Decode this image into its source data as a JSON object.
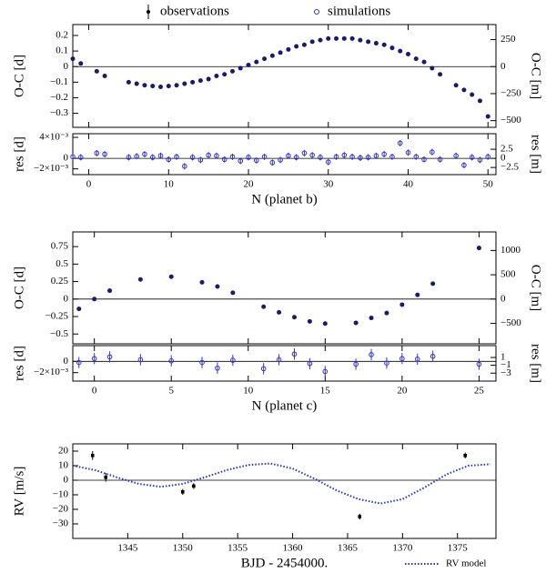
{
  "legend": [
    "observations",
    "simulations"
  ],
  "chart_data": [
    {
      "type": "scatter",
      "marker": "filled",
      "color": "#1a1a6e",
      "zero_line": true,
      "ylabel": "O-C [d]",
      "y2label": "O-C [m]",
      "x": [
        -2,
        -1,
        1,
        2,
        5,
        6,
        7,
        8,
        9,
        10,
        11,
        12,
        13,
        14,
        15,
        16,
        17,
        18,
        19,
        20,
        21,
        22,
        23,
        24,
        25,
        26,
        27,
        28,
        29,
        30,
        31,
        32,
        33,
        34,
        35,
        36,
        37,
        38,
        39,
        40,
        41,
        42,
        43,
        44,
        46,
        47,
        48,
        49,
        50
      ],
      "values": [
        0.05,
        0.02,
        -0.03,
        -0.06,
        -0.1,
        -0.11,
        -0.12,
        -0.125,
        -0.13,
        -0.125,
        -0.12,
        -0.11,
        -0.1,
        -0.09,
        -0.08,
        -0.06,
        -0.05,
        -0.03,
        -0.01,
        0.01,
        0.03,
        0.05,
        0.07,
        0.09,
        0.11,
        0.13,
        0.14,
        0.16,
        0.17,
        0.18,
        0.18,
        0.18,
        0.18,
        0.17,
        0.16,
        0.15,
        0.14,
        0.12,
        0.1,
        0.08,
        0.05,
        0.03,
        -0.01,
        -0.05,
        -0.12,
        -0.15,
        -0.18,
        -0.22,
        -0.32
      ],
      "xlim": [
        -2,
        51
      ],
      "ylim": [
        -0.39,
        0.27
      ],
      "yticks": [
        0.2,
        0.1,
        0,
        {
          "value": -0.1,
          "label": "−0.1"
        },
        {
          "value": -0.2,
          "label": "−0.2"
        },
        {
          "value": -0.3,
          "label": "−0.3"
        }
      ],
      "y2lim": [
        -562,
        389
      ],
      "y2ticks": [
        250,
        0,
        {
          "value": -250,
          "label": "−250"
        },
        {
          "value": -500,
          "label": "−500"
        }
      ]
    },
    {
      "type": "scatter",
      "marker": "open",
      "color": "#3333cc",
      "zero_line": true,
      "ylabel": "res [d]",
      "y2label": "res [m]",
      "xlabel": "N (planet b)",
      "x": [
        -2,
        -1,
        1,
        2,
        5,
        6,
        7,
        8,
        9,
        10,
        11,
        12,
        13,
        14,
        15,
        16,
        17,
        18,
        19,
        20,
        21,
        22,
        23,
        24,
        25,
        26,
        27,
        28,
        29,
        30,
        31,
        32,
        33,
        34,
        35,
        36,
        37,
        38,
        39,
        40,
        41,
        42,
        43,
        44,
        46,
        47,
        48,
        49,
        50
      ],
      "values": [
        0.0003,
        0.0002,
        0.001,
        0.0008,
        0.0002,
        0.0004,
        0.0008,
        0.0002,
        0.0005,
        -0.0002,
        0.0003,
        -0.0015,
        0.0002,
        -0.0003,
        0.0006,
        0.0005,
        -0.0002,
        0.0003,
        -0.0005,
        0.0002,
        -0.0004,
        0.0003,
        -0.0008,
        -0.0003,
        0.0005,
        0.0002,
        0.001,
        0.0006,
        0.0002,
        -0.0007,
        0.0003,
        0.0006,
        0.0003,
        0.0001,
        0.0002,
        0.0005,
        0.0008,
        0.0003,
        0.0029,
        0.0011,
        0.0003,
        -0.0002,
        0.0012,
        -0.0002,
        0.0005,
        -0.0013,
        0.0002,
        -0.0003,
        0.0003
      ],
      "errors": [
        0.0006,
        0.0006,
        0.0006,
        0.0006,
        0.0006,
        0.0006,
        0.0006,
        0.0006,
        0.0006,
        0.0006,
        0.0006,
        0.0006,
        0.0006,
        0.0006,
        0.0006,
        0.0006,
        0.0006,
        0.0006,
        0.0006,
        0.0006,
        0.0006,
        0.0006,
        0.0006,
        0.0006,
        0.0006,
        0.0006,
        0.0006,
        0.0006,
        0.0006,
        0.0006,
        0.0006,
        0.0006,
        0.0006,
        0.0006,
        0.0006,
        0.0006,
        0.0006,
        0.0006,
        0.0006,
        0.0006,
        0.0006,
        0.0006,
        0.0006,
        0.0006,
        0.0006,
        0.0006,
        0.0006,
        0.0006,
        0.0006
      ],
      "xlim": [
        -2,
        51
      ],
      "xticks": [
        0,
        10,
        20,
        30,
        40,
        50
      ],
      "ylim": [
        -0.0031,
        0.0047
      ],
      "yticks": [
        {
          "value": 0.004,
          "label": "4×10⁻³"
        },
        0,
        {
          "value": -0.002,
          "label": "−2×10⁻³"
        }
      ],
      "y2lim": [
        -4.46,
        6.77
      ],
      "y2ticks": [
        2.5,
        0,
        {
          "value": -2.5,
          "label": "−2.5"
        }
      ]
    },
    {
      "type": "scatter",
      "marker": "filled",
      "color": "#1a1a6e",
      "zero_line": true,
      "ylabel": "O-C [d]",
      "y2label": "O-C [m]",
      "x": [
        -1,
        0,
        1,
        3,
        5,
        7,
        8,
        9,
        11,
        12,
        13,
        14,
        15,
        17,
        18,
        19,
        20,
        21,
        22,
        25
      ],
      "values": [
        -0.14,
        0,
        0.12,
        0.28,
        0.32,
        0.24,
        0.18,
        0.09,
        -0.11,
        -0.19,
        -0.26,
        -0.32,
        -0.35,
        -0.34,
        -0.27,
        -0.2,
        -0.08,
        0.06,
        0.22,
        0.73
      ],
      "xlim": [
        -1.4,
        26.1
      ],
      "ylim": [
        -0.64,
        0.96
      ],
      "yticks": [
        0.75,
        0.5,
        0.25,
        0,
        {
          "value": -0.25,
          "label": "−0.25"
        },
        {
          "value": -0.5,
          "label": "−0.5"
        }
      ],
      "y2lim": [
        -922,
        1382
      ],
      "y2ticks": [
        1000,
        500,
        0,
        {
          "value": -500,
          "label": "−500"
        }
      ]
    },
    {
      "type": "scatter",
      "marker": "open",
      "color": "#3333cc",
      "zero_line": true,
      "ylabel": "res [d]",
      "y2label": "res [m]",
      "xlabel": "N (planet c)",
      "x": [
        -1,
        0,
        1,
        3,
        5,
        7,
        8,
        9,
        11,
        12,
        13,
        14,
        15,
        17,
        18,
        19,
        20,
        21,
        22,
        25
      ],
      "values": [
        -0.0002,
        0.0005,
        0.0008,
        0.0003,
        0.0001,
        -0.0002,
        -0.0012,
        0.0002,
        -0.0013,
        0.0003,
        0.0013,
        -0.0004,
        -0.0018,
        -0.0005,
        0.0012,
        -0.0003,
        0.0005,
        0.0004,
        0.0009,
        -0.0005
      ],
      "errors": [
        0.001,
        0.001,
        0.001,
        0.001,
        0.001,
        0.001,
        0.001,
        0.001,
        0.001,
        0.001,
        0.001,
        0.001,
        0.001,
        0.001,
        0.001,
        0.001,
        0.001,
        0.001,
        0.001,
        0.001
      ],
      "xlim": [
        -1.4,
        26.1
      ],
      "xticks": [
        0,
        5,
        10,
        15,
        20,
        25
      ],
      "ylim": [
        -0.0035,
        0.0028
      ],
      "yticks": [
        0,
        {
          "value": -0.002,
          "label": "−2×10⁻³"
        }
      ],
      "y2lim": [
        -5.04,
        4.03
      ],
      "y2ticks": [
        1,
        {
          "value": -1,
          "label": "−1"
        },
        {
          "value": -3,
          "label": "−3"
        }
      ]
    },
    {
      "type": "scatter",
      "marker": "square",
      "color": "#000000",
      "zero_line": true,
      "ylabel": "RV [m/s]",
      "xlabel": "BJD - 2454000.",
      "x": [
        1341.8,
        1343.0,
        1350.0,
        1351.0,
        1366.1,
        1375.7
      ],
      "values": [
        17,
        2,
        -8,
        -4,
        -25,
        17
      ],
      "errors": [
        3,
        3,
        2,
        2,
        2,
        2
      ],
      "xlim": [
        1340,
        1378.5
      ],
      "xticks": [
        1345,
        1350,
        1355,
        1360,
        1365,
        1370,
        1375
      ],
      "ylim": [
        -40,
        25
      ],
      "yticks": [
        20,
        10,
        0,
        {
          "value": -10,
          "label": "−10"
        },
        {
          "value": -20,
          "label": "−20"
        },
        {
          "value": -30,
          "label": "−30"
        }
      ],
      "model": {
        "name": "RV model",
        "color": "#2233cc",
        "x": [
          1340,
          1342,
          1344,
          1346,
          1348,
          1350,
          1352,
          1354,
          1356,
          1358,
          1360,
          1362,
          1364,
          1366,
          1368,
          1370,
          1372,
          1374,
          1376,
          1378
        ],
        "values": [
          10,
          7,
          2,
          -2.5,
          -4.5,
          -2.5,
          2,
          7,
          10.5,
          11.5,
          8,
          1,
          -7,
          -13,
          -16,
          -13,
          -5,
          4,
          10,
          11
        ]
      }
    }
  ]
}
